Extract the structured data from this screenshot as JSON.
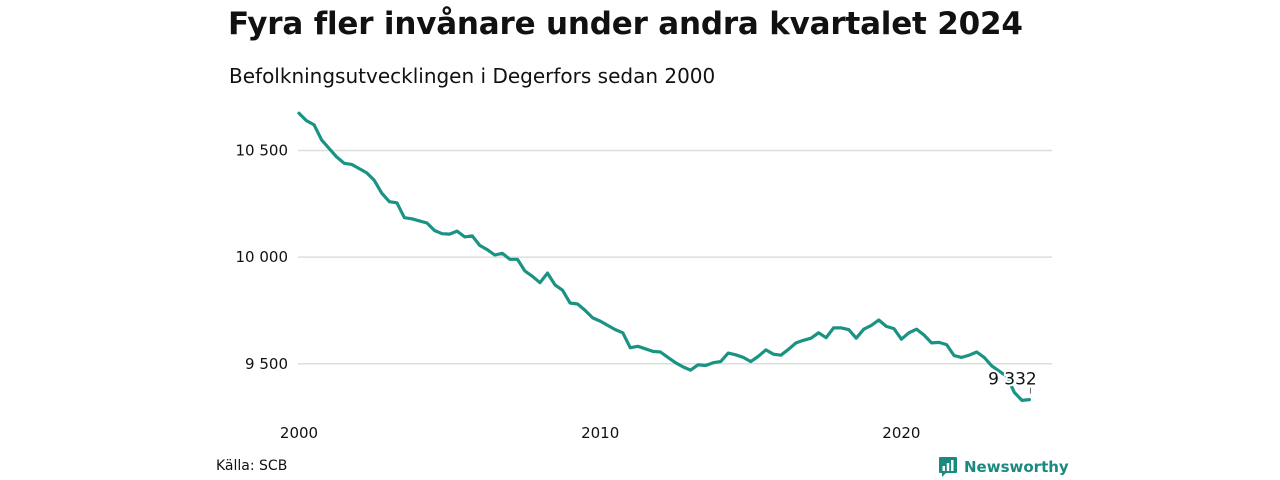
{
  "header": {
    "title": "Fyra fler invånare under andra kvartalet 2024",
    "subtitle": "Befolkningsutvecklingen i Degerfors sedan 2000"
  },
  "footer": {
    "source": "Källa: SCB",
    "brand": "Newsworthy",
    "brand_icon": "bar-chart-icon"
  },
  "colors": {
    "line": "#1a9385",
    "grid": "#dddddd",
    "brand": "#1a8a80"
  },
  "chart_data": {
    "type": "line",
    "title": "Fyra fler invånare under andra kvartalet 2024",
    "subtitle": "Befolkningsutvecklingen i Degerfors sedan 2000",
    "xlabel": "",
    "ylabel": "",
    "x_range": [
      2000,
      2025
    ],
    "ylim": [
      9330,
      10690
    ],
    "grid": "horizontal",
    "x_ticks": [
      {
        "value": 2000,
        "label": "2000"
      },
      {
        "value": 2010,
        "label": "2010"
      },
      {
        "value": 2020,
        "label": "2020"
      }
    ],
    "y_ticks": [
      {
        "value": 9500,
        "label": "9 500"
      },
      {
        "value": 10000,
        "label": "10 000"
      },
      {
        "value": 10500,
        "label": "10 500"
      }
    ],
    "annotation": {
      "x": 2024.25,
      "y": 9332,
      "label": "9 332"
    },
    "series": [
      {
        "x": [
          2000.0,
          2000.25,
          2000.5,
          2000.75,
          2001.0,
          2001.25,
          2001.5,
          2001.75,
          2002.0,
          2002.25,
          2002.5,
          2002.75,
          2003.0,
          2003.25,
          2003.5,
          2003.75,
          2004.0,
          2004.25,
          2004.5,
          2004.75,
          2005.0,
          2005.25,
          2005.5,
          2005.75,
          2006.0,
          2006.25,
          2006.5,
          2006.75,
          2007.0,
          2007.25,
          2007.5,
          2007.75,
          2008.0,
          2008.25,
          2008.5,
          2008.75,
          2009.0,
          2009.25,
          2009.5,
          2009.75,
          2010.0,
          2010.25,
          2010.5,
          2010.75,
          2011.0,
          2011.25,
          2011.5,
          2011.75,
          2012.0,
          2012.25,
          2012.5,
          2012.75,
          2013.0,
          2013.25,
          2013.5,
          2013.75,
          2014.0,
          2014.25,
          2014.5,
          2014.75,
          2015.0,
          2015.25,
          2015.5,
          2015.75,
          2016.0,
          2016.25,
          2016.5,
          2016.75,
          2017.0,
          2017.25,
          2017.5,
          2017.75,
          2018.0,
          2018.25,
          2018.5,
          2018.75,
          2019.0,
          2019.25,
          2019.5,
          2019.75,
          2020.0,
          2020.25,
          2020.5,
          2020.75,
          2021.0,
          2021.25,
          2021.5,
          2021.75,
          2022.0,
          2022.25,
          2022.5,
          2022.75,
          2023.0,
          2023.25,
          2023.5,
          2023.75,
          2024.0,
          2024.25
        ],
        "values": [
          10675,
          10640,
          10620,
          10550,
          10510,
          10470,
          10440,
          10435,
          10415,
          10395,
          10360,
          10300,
          10260,
          10255,
          10185,
          10180,
          10170,
          10160,
          10125,
          10110,
          10108,
          10122,
          10095,
          10100,
          10055,
          10035,
          10010,
          10018,
          9990,
          9990,
          9935,
          9910,
          9880,
          9925,
          9870,
          9845,
          9785,
          9780,
          9750,
          9715,
          9700,
          9680,
          9660,
          9645,
          9575,
          9582,
          9570,
          9558,
          9555,
          9530,
          9505,
          9485,
          9470,
          9495,
          9492,
          9505,
          9510,
          9550,
          9542,
          9530,
          9510,
          9535,
          9565,
          9545,
          9540,
          9568,
          9598,
          9610,
          9620,
          9645,
          9622,
          9668,
          9668,
          9660,
          9620,
          9662,
          9680,
          9705,
          9675,
          9665,
          9615,
          9645,
          9662,
          9635,
          9598,
          9600,
          9590,
          9538,
          9530,
          9540,
          9555,
          9530,
          9490,
          9465,
          9440,
          9365,
          9328,
          9332
        ]
      }
    ]
  }
}
